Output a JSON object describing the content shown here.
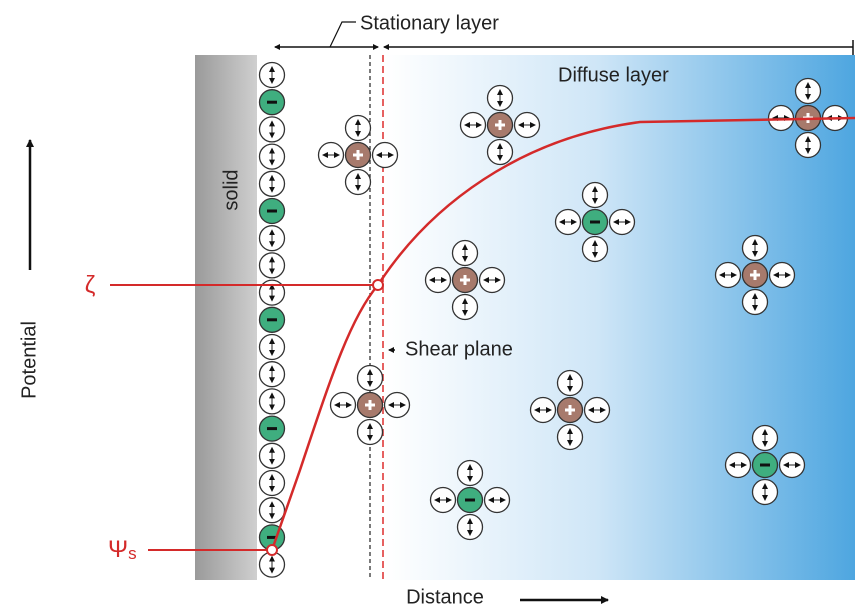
{
  "labels": {
    "stationary_layer": "Stationary layer",
    "diffuse_layer": "Diffuse layer",
    "solid": "solid",
    "potential": "Potential",
    "zeta": "ζ",
    "psi": "Ψ",
    "psi_subscript": "s",
    "shear_plane": "Shear plane",
    "distance": "Distance"
  }
}
